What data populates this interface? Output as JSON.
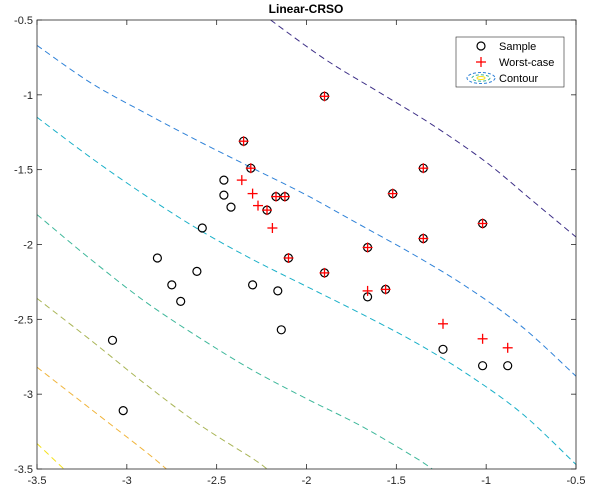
{
  "chart_data": {
    "type": "scatter",
    "title": "Linear-CRSO",
    "xlabel": "",
    "ylabel": "",
    "xlim": [
      -3.5,
      -0.5
    ],
    "ylim": [
      -3.5,
      -0.5
    ],
    "x_ticks": [
      -3.5,
      -3,
      -2.5,
      -2,
      -1.5,
      -1,
      -0.5
    ],
    "y_ticks": [
      -3.5,
      -3,
      -2.5,
      -2,
      -1.5,
      -1,
      -0.5
    ],
    "x_tick_labels": [
      "-3.5",
      "-3",
      "-2.5",
      "-2",
      "-1.5",
      "-1",
      "-0.5"
    ],
    "y_tick_labels": [
      "-3.5",
      "-3",
      "-2.5",
      "-2",
      "-1.5",
      "-1",
      "-0.5"
    ],
    "grid": false,
    "legend_position": "top-right",
    "legend": [
      "Sample",
      "Worst-case",
      "Contour"
    ],
    "series": [
      {
        "name": "Sample",
        "marker": "circle",
        "color": "#000000",
        "points": [
          [
            -1.9,
            -1.01
          ],
          [
            -2.35,
            -1.31
          ],
          [
            -2.31,
            -1.49
          ],
          [
            -1.35,
            -1.49
          ],
          [
            -2.46,
            -1.57
          ],
          [
            -2.46,
            -1.67
          ],
          [
            -2.17,
            -1.68
          ],
          [
            -2.12,
            -1.68
          ],
          [
            -1.52,
            -1.66
          ],
          [
            -2.22,
            -1.77
          ],
          [
            -2.42,
            -1.75
          ],
          [
            -1.02,
            -1.86
          ],
          [
            -2.58,
            -1.89
          ],
          [
            -1.35,
            -1.96
          ],
          [
            -1.66,
            -2.02
          ],
          [
            -2.83,
            -2.09
          ],
          [
            -1.9,
            -2.19
          ],
          [
            -2.61,
            -2.18
          ],
          [
            -2.1,
            -2.09
          ],
          [
            -2.75,
            -2.27
          ],
          [
            -2.3,
            -2.27
          ],
          [
            -2.16,
            -2.31
          ],
          [
            -1.56,
            -2.3
          ],
          [
            -1.66,
            -2.35
          ],
          [
            -2.7,
            -2.38
          ],
          [
            -2.14,
            -2.57
          ],
          [
            -3.08,
            -2.64
          ],
          [
            -1.24,
            -2.7
          ],
          [
            -1.02,
            -2.81
          ],
          [
            -0.88,
            -2.81
          ],
          [
            -3.02,
            -3.11
          ]
        ]
      },
      {
        "name": "Worst-case",
        "marker": "plus",
        "color": "#ff0000",
        "points": [
          [
            -1.9,
            -1.01
          ],
          [
            -2.35,
            -1.31
          ],
          [
            -2.31,
            -1.49
          ],
          [
            -1.35,
            -1.49
          ],
          [
            -2.36,
            -1.57
          ],
          [
            -2.3,
            -1.66
          ],
          [
            -2.17,
            -1.68
          ],
          [
            -2.12,
            -1.68
          ],
          [
            -1.52,
            -1.66
          ],
          [
            -2.27,
            -1.74
          ],
          [
            -2.22,
            -1.77
          ],
          [
            -1.02,
            -1.86
          ],
          [
            -2.19,
            -1.89
          ],
          [
            -1.35,
            -1.96
          ],
          [
            -1.66,
            -2.02
          ],
          [
            -2.1,
            -2.09
          ],
          [
            -1.9,
            -2.19
          ],
          [
            -1.66,
            -2.31
          ],
          [
            -1.56,
            -2.3
          ],
          [
            -1.24,
            -2.53
          ],
          [
            -1.02,
            -2.63
          ],
          [
            -0.88,
            -2.69
          ]
        ]
      }
    ],
    "contours": [
      {
        "level": 1,
        "color": "#3d2f87",
        "points": [
          [
            -2.2,
            -0.5
          ],
          [
            -1.9,
            -0.76
          ],
          [
            -1.6,
            -0.98
          ],
          [
            -1.3,
            -1.2
          ],
          [
            -1.0,
            -1.45
          ],
          [
            -0.75,
            -1.7
          ],
          [
            -0.5,
            -1.95
          ]
        ]
      },
      {
        "level": 2,
        "color": "#2f82d8",
        "points": [
          [
            -3.5,
            -0.67
          ],
          [
            -3.2,
            -0.92
          ],
          [
            -2.9,
            -1.12
          ],
          [
            -2.6,
            -1.31
          ],
          [
            -2.3,
            -1.49
          ],
          [
            -2.0,
            -1.67
          ],
          [
            -1.7,
            -1.87
          ],
          [
            -1.4,
            -2.07
          ],
          [
            -1.1,
            -2.29
          ],
          [
            -0.8,
            -2.55
          ],
          [
            -0.5,
            -2.88
          ]
        ]
      },
      {
        "level": 3,
        "color": "#1ab0c8",
        "points": [
          [
            -3.5,
            -1.15
          ],
          [
            -3.2,
            -1.42
          ],
          [
            -2.9,
            -1.67
          ],
          [
            -2.6,
            -1.9
          ],
          [
            -2.3,
            -2.1
          ],
          [
            -2.0,
            -2.28
          ],
          [
            -1.7,
            -2.46
          ],
          [
            -1.4,
            -2.65
          ],
          [
            -1.1,
            -2.87
          ],
          [
            -0.8,
            -3.13
          ],
          [
            -0.5,
            -3.47
          ]
        ]
      },
      {
        "level": 4,
        "color": "#3fb89b",
        "points": [
          [
            -3.5,
            -1.8
          ],
          [
            -3.2,
            -2.1
          ],
          [
            -2.9,
            -2.38
          ],
          [
            -2.6,
            -2.62
          ],
          [
            -2.3,
            -2.84
          ],
          [
            -2.0,
            -3.03
          ],
          [
            -1.7,
            -3.21
          ],
          [
            -1.4,
            -3.42
          ],
          [
            -1.3,
            -3.5
          ]
        ]
      },
      {
        "level": 5,
        "color": "#a9b556",
        "points": [
          [
            -3.5,
            -2.36
          ],
          [
            -3.2,
            -2.64
          ],
          [
            -2.9,
            -2.93
          ],
          [
            -2.6,
            -3.2
          ],
          [
            -2.3,
            -3.43
          ],
          [
            -2.22,
            -3.5
          ]
        ]
      },
      {
        "level": 6,
        "color": "#f0b43a",
        "points": [
          [
            -3.5,
            -2.82
          ],
          [
            -3.2,
            -3.1
          ],
          [
            -2.9,
            -3.38
          ],
          [
            -2.78,
            -3.5
          ]
        ]
      },
      {
        "level": 7,
        "color": "#f5e21d",
        "points": [
          [
            -3.5,
            -3.33
          ],
          [
            -3.35,
            -3.5
          ]
        ]
      }
    ],
    "colors": {
      "axis": "#262626",
      "sample": "#000000",
      "worst_case": "#ff0000"
    }
  }
}
